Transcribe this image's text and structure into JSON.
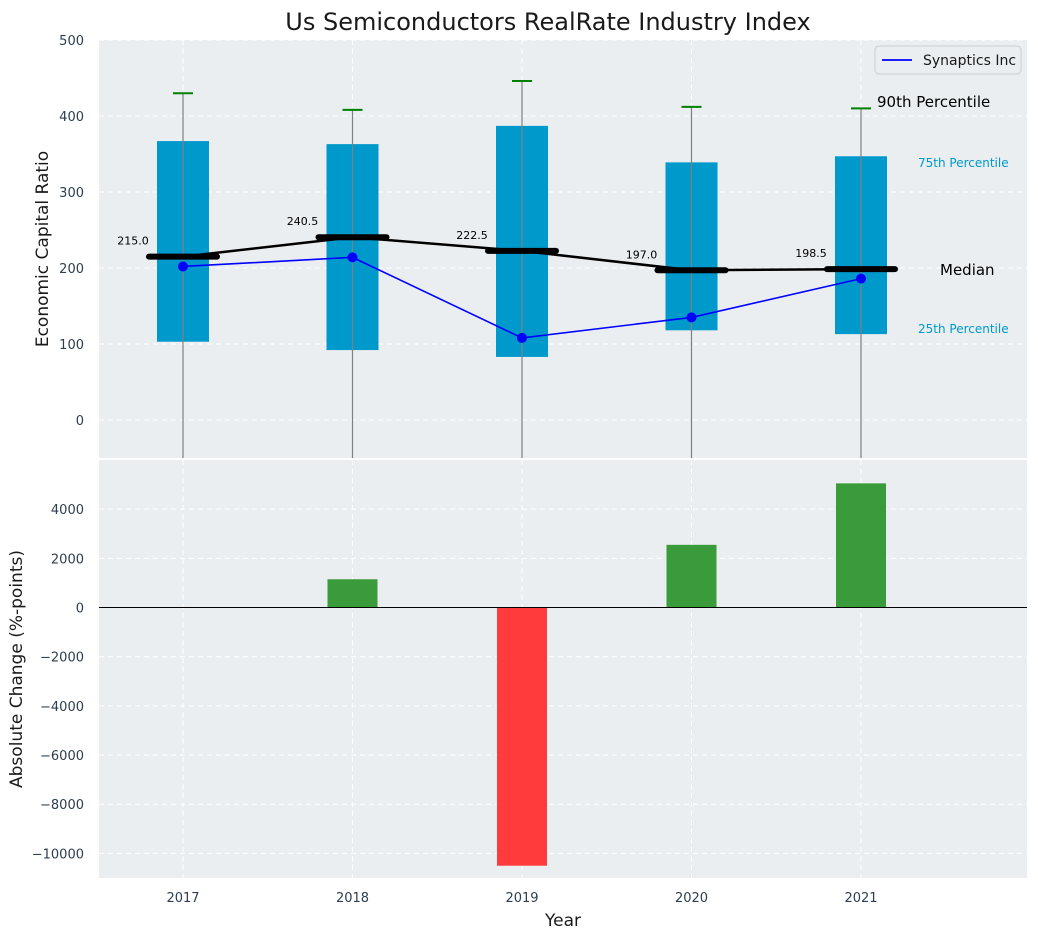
{
  "chart_data": {
    "title": "Us Semiconductors RealRate Industry Index",
    "xlabel": "Year",
    "categories": [
      "2017",
      "2018",
      "2019",
      "2020",
      "2021"
    ],
    "top_panel": {
      "type": "bar",
      "ylabel": "Economic Capital Ratio",
      "ylim": [
        -50,
        500
      ],
      "yticks": [
        0,
        100,
        200,
        300,
        400,
        500
      ],
      "grid": true,
      "percentile_25": [
        103,
        92,
        83,
        118,
        113
      ],
      "percentile_75": [
        367,
        363,
        387,
        339,
        347
      ],
      "percentile_90": [
        430,
        408,
        446,
        412,
        410
      ],
      "median": [
        215.0,
        240.5,
        222.5,
        197.0,
        198.5
      ],
      "median_labels": [
        "215.0",
        "240.5",
        "222.5",
        "197.0",
        "198.5"
      ],
      "series": [
        {
          "name": "Synaptics Inc",
          "values": [
            202,
            214,
            108,
            135,
            186
          ]
        }
      ],
      "legend_position": "top-right",
      "annotations": {
        "p90": "90th Percentile",
        "p75": "75th Percentile",
        "median": "Median",
        "p25": "25th Percentile"
      }
    },
    "bottom_panel": {
      "type": "bar",
      "ylabel": "Absolute Change (%-points)",
      "ylim": [
        -11000,
        6000
      ],
      "yticks": [
        -10000,
        -8000,
        -6000,
        -4000,
        -2000,
        0,
        2000,
        4000
      ],
      "ytick_labels": [
        "−10000",
        "−8000",
        "−6000",
        "−4000",
        "−2000",
        "0",
        "2000",
        "4000"
      ],
      "grid": true,
      "values": [
        0,
        1150,
        -10500,
        2550,
        5050
      ]
    }
  },
  "colors": {
    "box": "#0099cc",
    "whisker_cap": "#008000",
    "median_line": "#000000",
    "series_line": "#0000ff",
    "positive_bar": "#3a9b3a",
    "negative_bar": "#ff3b3b",
    "panel_bg": "#eaeef0",
    "annotation_blue": "#0099cc",
    "annotation_black": "#000000"
  }
}
